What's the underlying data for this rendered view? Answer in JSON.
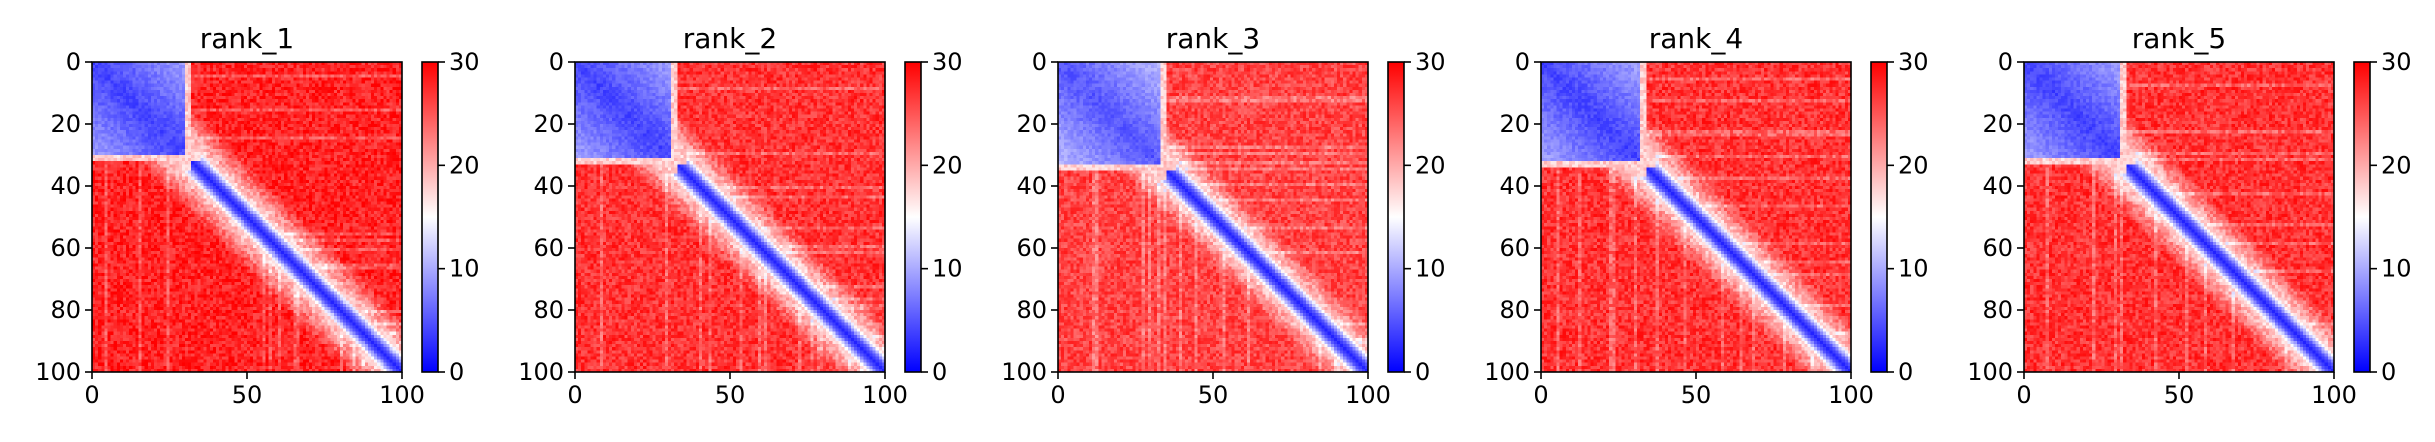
{
  "colors": {
    "colormap": [
      "#0000ff",
      "#ffffff",
      "#ff0000"
    ],
    "axes": "#000000",
    "background": "#ffffff"
  },
  "chart_data": [
    {
      "type": "heatmap",
      "title": "rank_1",
      "xlim": [
        0,
        100
      ],
      "ylim": [
        100,
        0
      ],
      "xticks": [
        "0",
        "50",
        "100"
      ],
      "yticks": [
        "0",
        "20",
        "40",
        "60",
        "80",
        "100"
      ],
      "colorbar": {
        "vmin": 0,
        "vmax": 30,
        "ticks": [
          "0",
          "10",
          "20",
          "30"
        ]
      },
      "domain_boundary": 32,
      "intra_domain_value": 4,
      "off_diagonal_value": 28,
      "diagonal_value": 2
    },
    {
      "type": "heatmap",
      "title": "rank_2",
      "xlim": [
        0,
        100
      ],
      "ylim": [
        100,
        0
      ],
      "xticks": [
        "0",
        "50",
        "100"
      ],
      "yticks": [
        "0",
        "20",
        "40",
        "60",
        "80",
        "100"
      ],
      "colorbar": {
        "vmin": 0,
        "vmax": 30,
        "ticks": [
          "0",
          "10",
          "20",
          "30"
        ]
      },
      "domain_boundary": 33,
      "intra_domain_value": 4,
      "off_diagonal_value": 27,
      "diagonal_value": 2
    },
    {
      "type": "heatmap",
      "title": "rank_3",
      "xlim": [
        0,
        100
      ],
      "ylim": [
        100,
        0
      ],
      "xticks": [
        "0",
        "50",
        "100"
      ],
      "yticks": [
        "0",
        "20",
        "40",
        "60",
        "80",
        "100"
      ],
      "colorbar": {
        "vmin": 0,
        "vmax": 30,
        "ticks": [
          "0",
          "10",
          "20",
          "30"
        ]
      },
      "domain_boundary": 35,
      "intra_domain_value": 5,
      "off_diagonal_value": 26,
      "diagonal_value": 2
    },
    {
      "type": "heatmap",
      "title": "rank_4",
      "xlim": [
        0,
        100
      ],
      "ylim": [
        100,
        0
      ],
      "xticks": [
        "0",
        "50",
        "100"
      ],
      "yticks": [
        "0",
        "20",
        "40",
        "60",
        "80",
        "100"
      ],
      "colorbar": {
        "vmin": 0,
        "vmax": 30,
        "ticks": [
          "0",
          "10",
          "20",
          "30"
        ]
      },
      "domain_boundary": 34,
      "intra_domain_value": 4,
      "off_diagonal_value": 27,
      "diagonal_value": 2
    },
    {
      "type": "heatmap",
      "title": "rank_5",
      "xlim": [
        0,
        100
      ],
      "ylim": [
        100,
        0
      ],
      "xticks": [
        "0",
        "50",
        "100"
      ],
      "yticks": [
        "0",
        "20",
        "40",
        "60",
        "80",
        "100"
      ],
      "colorbar": {
        "vmin": 0,
        "vmax": 30,
        "ticks": [
          "0",
          "10",
          "20",
          "30"
        ]
      },
      "domain_boundary": 33,
      "intra_domain_value": 4,
      "off_diagonal_value": 27,
      "diagonal_value": 2
    }
  ]
}
